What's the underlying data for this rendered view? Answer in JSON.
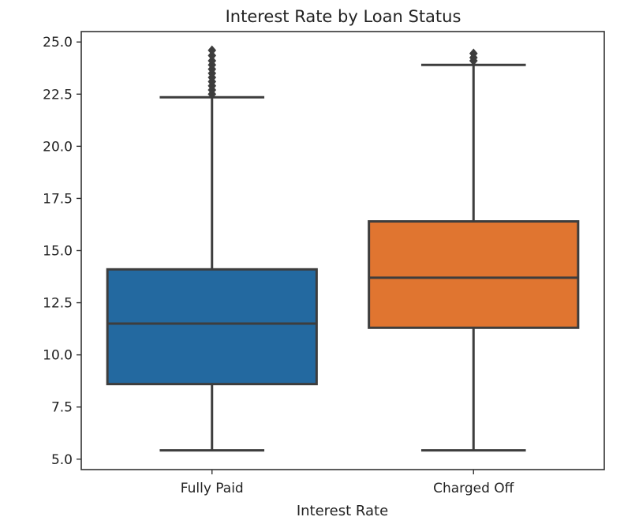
{
  "chart_data": {
    "type": "box",
    "title": "Interest Rate by Loan Status",
    "xlabel": "Interest Rate",
    "ylabel": "",
    "ylim": [
      4.5,
      25.5
    ],
    "yticks": [
      5.0,
      7.5,
      10.0,
      12.5,
      15.0,
      17.5,
      20.0,
      22.5,
      25.0
    ],
    "ytick_labels": [
      "5.0",
      "7.5",
      "10.0",
      "12.5",
      "15.0",
      "17.5",
      "20.0",
      "22.5",
      "25.0"
    ],
    "grid": false,
    "categories": [
      "Fully Paid",
      "Charged Off"
    ],
    "series": [
      {
        "category": "Fully Paid",
        "color": "#2369a0",
        "whisker_low": 5.42,
        "q1": 8.6,
        "median": 11.5,
        "q3": 14.1,
        "whisker_high": 22.35,
        "outliers": [
          22.5,
          22.7,
          22.9,
          23.1,
          23.3,
          23.5,
          23.7,
          23.9,
          24.1,
          24.35,
          24.6
        ]
      },
      {
        "category": "Charged Off",
        "color": "#e07530",
        "whisker_low": 5.42,
        "q1": 11.3,
        "median": 13.7,
        "q3": 16.4,
        "whisker_high": 23.9,
        "outliers": [
          24.1,
          24.25,
          24.45
        ]
      }
    ]
  }
}
